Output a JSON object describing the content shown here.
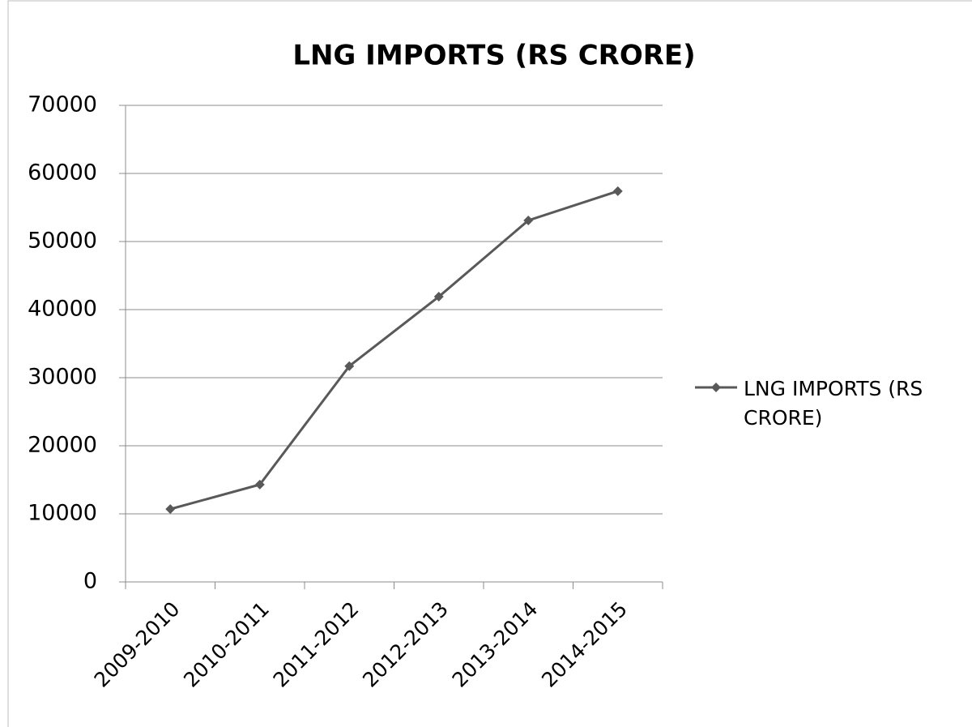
{
  "chart_data": {
    "type": "line",
    "title": "LNG IMPORTS (RS CRORE)",
    "categories": [
      "2009-2010",
      "2010-2011",
      "2011-2012",
      "2012-2013",
      "2013-2014",
      "2014-2015"
    ],
    "series": [
      {
        "name": "LNG IMPORTS (RS CRORE)",
        "color": "#595959",
        "values": [
          10700,
          14300,
          31700,
          41900,
          53100,
          57400
        ]
      }
    ],
    "ylim": [
      0,
      70000
    ],
    "yticks": [
      0,
      10000,
      20000,
      30000,
      40000,
      50000,
      60000,
      70000
    ],
    "grid": true,
    "legend": "right"
  }
}
